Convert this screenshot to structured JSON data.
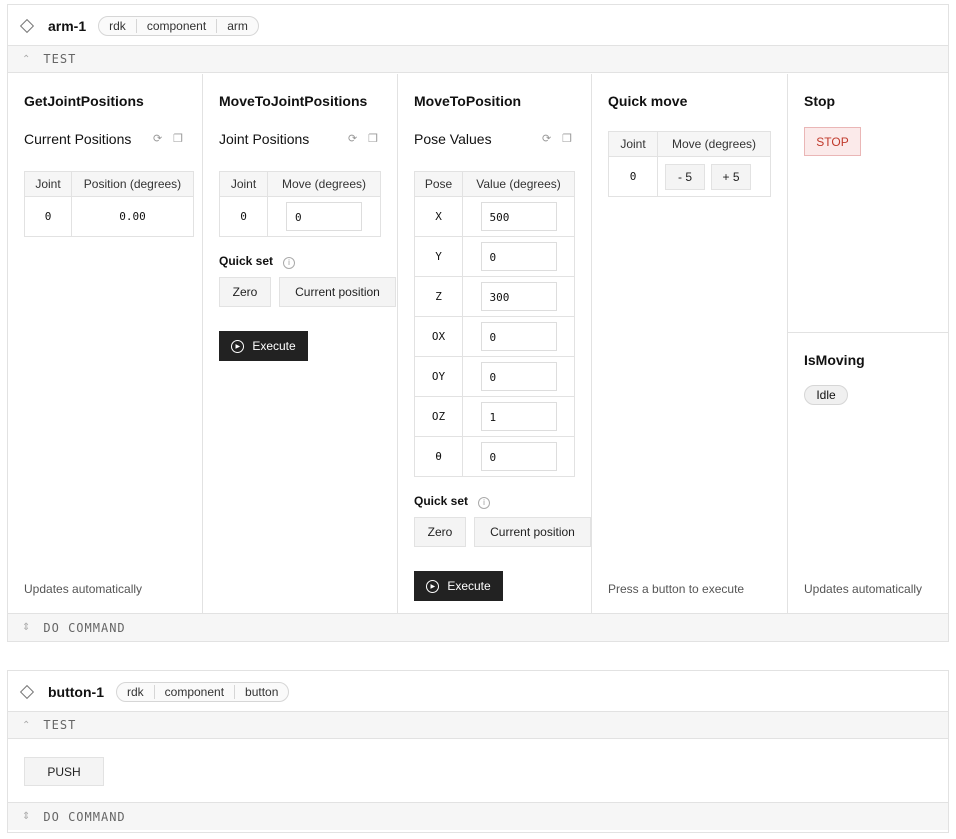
{
  "arm_card": {
    "name": "arm-1",
    "breadcrumbs": [
      "rdk",
      "component",
      "arm"
    ],
    "test_label": "TEST",
    "do_command_label": "DO COMMAND",
    "get_joint_positions": {
      "title": "GetJointPositions",
      "subtitle": "Current Positions",
      "headers": [
        "Joint",
        "Position (degrees)"
      ],
      "rows": [
        {
          "joint": "0",
          "position": "0.00"
        }
      ],
      "footer": "Updates automatically"
    },
    "move_to_joint_positions": {
      "title": "MoveToJointPositions",
      "subtitle": "Joint Positions",
      "headers": [
        "Joint",
        "Move (degrees)"
      ],
      "rows": [
        {
          "joint": "0",
          "value": "0"
        }
      ],
      "quick_set": "Quick set",
      "zero": "Zero",
      "current_position": "Current position",
      "execute": "Execute"
    },
    "move_to_position": {
      "title": "MoveToPosition",
      "subtitle": "Pose Values",
      "headers": [
        "Pose",
        "Value (degrees)"
      ],
      "rows": [
        {
          "pose": "X",
          "value": "500"
        },
        {
          "pose": "Y",
          "value": "0"
        },
        {
          "pose": "Z",
          "value": "300"
        },
        {
          "pose": "OX",
          "value": "0"
        },
        {
          "pose": "OY",
          "value": "0"
        },
        {
          "pose": "OZ",
          "value": "1"
        },
        {
          "pose": "θ",
          "value": "0"
        }
      ],
      "quick_set": "Quick set",
      "zero": "Zero",
      "current_position": "Current position",
      "execute": "Execute"
    },
    "quick_move": {
      "title": "Quick move",
      "headers": [
        "Joint",
        "Move (degrees)"
      ],
      "rows": [
        {
          "joint": "0",
          "minus": "- 5",
          "plus": "+ 5"
        }
      ],
      "footer": "Press a button to execute"
    },
    "stop": {
      "title": "Stop",
      "button": "STOP",
      "color": "#c0392b"
    },
    "is_moving": {
      "title": "IsMoving",
      "status": "Idle",
      "footer": "Updates automatically"
    }
  },
  "button_card": {
    "name": "button-1",
    "breadcrumbs": [
      "rdk",
      "component",
      "button"
    ],
    "test_label": "TEST",
    "push": "PUSH",
    "do_command_label": "DO COMMAND"
  }
}
